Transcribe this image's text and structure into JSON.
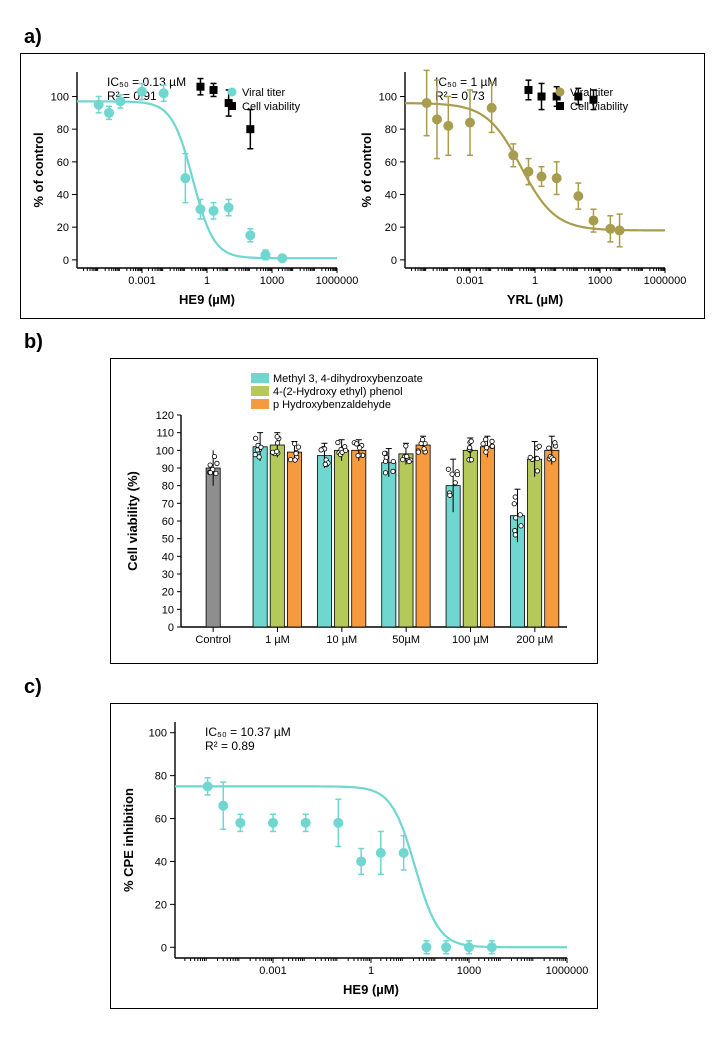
{
  "panelA": {
    "left": {
      "type": "scatter-with-fit",
      "xlabel": "HE9 (µM)",
      "ylabel": "% of control",
      "stat1": "IC₅₀ = 0.13 µM",
      "stat2": "R² = 0.91",
      "x_log": true,
      "xlim": [
        1e-06,
        1000000
      ],
      "xticks": [
        0.001,
        1,
        1000,
        1000000
      ],
      "xtick_labels": [
        "0.001",
        "1",
        "1000",
        "1000000"
      ],
      "ylim": [
        -5,
        115
      ],
      "yticks": [
        0,
        20,
        40,
        60,
        80,
        100
      ],
      "curve_color": "#6fd6d0",
      "curve_width": 2.2,
      "viral_points": [
        {
          "x": 1e-05,
          "y": 95,
          "err": 5
        },
        {
          "x": 3e-05,
          "y": 90,
          "err": 4
        },
        {
          "x": 0.0001,
          "y": 97,
          "err": 4
        },
        {
          "x": 0.001,
          "y": 103,
          "err": 5
        },
        {
          "x": 0.01,
          "y": 102,
          "err": 5
        },
        {
          "x": 0.1,
          "y": 50,
          "err": 15
        },
        {
          "x": 0.5,
          "y": 31,
          "err": 6
        },
        {
          "x": 2,
          "y": 30,
          "err": 5
        },
        {
          "x": 10,
          "y": 32,
          "err": 5
        },
        {
          "x": 100,
          "y": 15,
          "err": 4
        },
        {
          "x": 500,
          "y": 3,
          "err": 3
        },
        {
          "x": 3000,
          "y": 1,
          "err": 2
        }
      ],
      "viral_color": "#6fd6d0",
      "cell_points": [
        {
          "x": 0.5,
          "y": 106,
          "err": 5
        },
        {
          "x": 2,
          "y": 104,
          "err": 4
        },
        {
          "x": 10,
          "y": 96,
          "err": 8
        },
        {
          "x": 100,
          "y": 80,
          "err": 12
        }
      ],
      "cell_color": "#000000",
      "legend": {
        "viral": "Viral titer",
        "cell": "Cell viability"
      }
    },
    "right": {
      "type": "scatter-with-fit",
      "xlabel": "YRL (µM)",
      "ylabel": "% of control",
      "stat1": "IC₅₀ = 1 µM",
      "stat2": "R² = 0.73",
      "x_log": true,
      "xlim": [
        1e-06,
        1000000
      ],
      "xticks": [
        0.001,
        1,
        1000,
        1000000
      ],
      "xtick_labels": [
        "0.001",
        "1",
        "1000",
        "1000000"
      ],
      "ylim": [
        -5,
        115
      ],
      "yticks": [
        0,
        20,
        40,
        60,
        80,
        100
      ],
      "curve_color": "#a89c4e",
      "curve_width": 2.2,
      "viral_points": [
        {
          "x": 1e-05,
          "y": 96,
          "err": 20
        },
        {
          "x": 3e-05,
          "y": 86,
          "err": 24
        },
        {
          "x": 0.0001,
          "y": 82,
          "err": 18
        },
        {
          "x": 0.001,
          "y": 84,
          "err": 20
        },
        {
          "x": 0.01,
          "y": 93,
          "err": 15
        },
        {
          "x": 0.1,
          "y": 64,
          "err": 7
        },
        {
          "x": 0.5,
          "y": 54,
          "err": 8
        },
        {
          "x": 2,
          "y": 51,
          "err": 6
        },
        {
          "x": 10,
          "y": 50,
          "err": 10
        },
        {
          "x": 100,
          "y": 39,
          "err": 8
        },
        {
          "x": 500,
          "y": 24,
          "err": 7
        },
        {
          "x": 3000,
          "y": 19,
          "err": 8
        },
        {
          "x": 8000,
          "y": 18,
          "err": 10
        }
      ],
      "viral_color": "#a89c4e",
      "cell_points": [
        {
          "x": 0.5,
          "y": 104,
          "err": 6
        },
        {
          "x": 2,
          "y": 100,
          "err": 8
        },
        {
          "x": 10,
          "y": 100,
          "err": 6
        },
        {
          "x": 100,
          "y": 100,
          "err": 5
        },
        {
          "x": 500,
          "y": 98,
          "err": 6
        }
      ],
      "cell_color": "#000000",
      "legend": {
        "viral": "Viral titer",
        "cell": "Cell viability"
      }
    }
  },
  "panelB": {
    "type": "bar",
    "xlabel": "",
    "ylabel": "Cell viability (%)",
    "categories": [
      "Control",
      "1 µM",
      "10 µM",
      "50µM",
      "100 µM",
      "200 µM"
    ],
    "series": [
      {
        "name": "Methyl 3, 4-dihydroxybenzoate",
        "color": "#6fd6d0"
      },
      {
        "name": "4-(2-Hydroxy ethyl) phenol",
        "color": "#b4c95a"
      },
      {
        "name": "p Hydroxybenzaldehyde",
        "color": "#f59a3e"
      }
    ],
    "control_color": "#8e8e8e",
    "values": {
      "Control": [
        90,
        null,
        null
      ],
      "1 µM": [
        102,
        103,
        99
      ],
      "10 µM": [
        97,
        100,
        100
      ],
      "50µM": [
        93,
        98,
        103
      ],
      "100 µM": [
        80,
        100,
        102
      ],
      "200 µM": [
        63,
        95,
        100
      ]
    },
    "errors": {
      "Control": [
        10,
        0,
        0
      ],
      "1 µM": [
        8,
        7,
        6
      ],
      "10 µM": [
        7,
        6,
        6
      ],
      "50µM": [
        8,
        6,
        5
      ],
      "100 µM": [
        15,
        7,
        6
      ],
      "200 µM": [
        15,
        10,
        8
      ]
    },
    "ylim": [
      0,
      120
    ],
    "yticks": [
      0,
      10,
      20,
      30,
      40,
      50,
      60,
      70,
      80,
      90,
      100,
      110,
      120
    ],
    "legend_labels": [
      "Methyl 3, 4-dihydroxybenzoate",
      "4-(2-Hydroxy ethyl) phenol",
      "p Hydroxybenzaldehyde"
    ]
  },
  "panelC": {
    "type": "scatter-with-fit",
    "xlabel": "HE9 (µM)",
    "ylabel": "% CPE inhibition",
    "stat1": "IC₅₀ = 10.37 µM",
    "stat2": "R² = 0.89",
    "x_log": true,
    "xlim": [
      1e-06,
      1000000
    ],
    "xticks": [
      0.001,
      1,
      1000,
      1000000
    ],
    "xtick_labels": [
      "0.001",
      "1",
      "1000",
      "1000000"
    ],
    "ylim": [
      -5,
      105
    ],
    "yticks": [
      0,
      20,
      40,
      60,
      80,
      100
    ],
    "curve_color": "#6fd6d0",
    "curve_width": 2.2,
    "points": [
      {
        "x": 1e-05,
        "y": 75,
        "err": 4
      },
      {
        "x": 3e-05,
        "y": 66,
        "err": 11
      },
      {
        "x": 0.0001,
        "y": 58,
        "err": 4
      },
      {
        "x": 0.001,
        "y": 58,
        "err": 4
      },
      {
        "x": 0.01,
        "y": 58,
        "err": 4
      },
      {
        "x": 0.1,
        "y": 58,
        "err": 11
      },
      {
        "x": 0.5,
        "y": 40,
        "err": 6
      },
      {
        "x": 2,
        "y": 44,
        "err": 10
      },
      {
        "x": 10,
        "y": 44,
        "err": 8
      },
      {
        "x": 50,
        "y": 0,
        "err": 3
      },
      {
        "x": 200,
        "y": 0,
        "err": 3
      },
      {
        "x": 1000,
        "y": 0,
        "err": 3
      },
      {
        "x": 5000,
        "y": 0,
        "err": 3
      }
    ],
    "point_color": "#6fd6d0"
  },
  "labels": {
    "a": "a)",
    "b": "b)",
    "c": "c)"
  }
}
